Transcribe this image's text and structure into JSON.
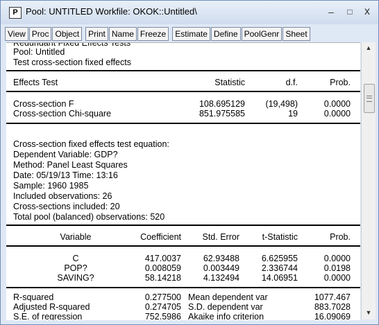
{
  "window": {
    "icon_letter": "P",
    "title": "Pool: UNTITLED   Workfile: OKOK::Untitled\\",
    "minimize": "–",
    "maximize": "□",
    "close": "x"
  },
  "toolbar": {
    "group1": [
      "View",
      "Proc",
      "Object"
    ],
    "group2": [
      "Print",
      "Name",
      "Freeze"
    ],
    "group3": [
      "Estimate",
      "Define",
      "PoolGenr",
      "Sheet"
    ]
  },
  "header_lines": {
    "line0": "Redundant Fixed Effects Tests",
    "line1": "Pool: Untitled",
    "line2": "Test cross-section fixed effects"
  },
  "effects_table": {
    "headers": [
      "Effects Test",
      "Statistic",
      "d.f.",
      "Prob."
    ],
    "rows": [
      [
        "Cross-section F",
        "108.695129",
        "(19,498)",
        "0.0000"
      ],
      [
        "Cross-section Chi-square",
        "851.975585",
        "19",
        "0.0000"
      ]
    ]
  },
  "equation_info": [
    "Cross-section fixed effects test equation:",
    "Dependent Variable: GDP?",
    "Method: Panel Least Squares",
    "Date: 05/19/13   Time: 13:16",
    "Sample: 1960 1985",
    "Included observations: 26",
    "Cross-sections included: 20",
    "Total pool (balanced) observations: 520"
  ],
  "coef_table": {
    "headers": [
      "Variable",
      "Coefficient",
      "Std. Error",
      "t-Statistic",
      "Prob."
    ],
    "rows": [
      [
        "C",
        "417.0037",
        "62.93488",
        "6.625955",
        "0.0000"
      ],
      [
        "POP?",
        "0.008059",
        "0.003449",
        "2.336744",
        "0.0198"
      ],
      [
        "SAVING?",
        "58.14218",
        "4.132494",
        "14.06951",
        "0.0000"
      ]
    ]
  },
  "stats_table": {
    "rows": [
      [
        "R-squared",
        "0.277500",
        "Mean dependent var",
        "1077.467"
      ],
      [
        "Adjusted R-squared",
        "0.274705",
        "S.D. dependent var",
        "883.7028"
      ],
      [
        "S.E. of regression",
        "752.5986",
        "Akaike info criterion",
        "16.09069"
      ]
    ]
  },
  "scroll": {
    "up": "▲",
    "down": "▼"
  }
}
